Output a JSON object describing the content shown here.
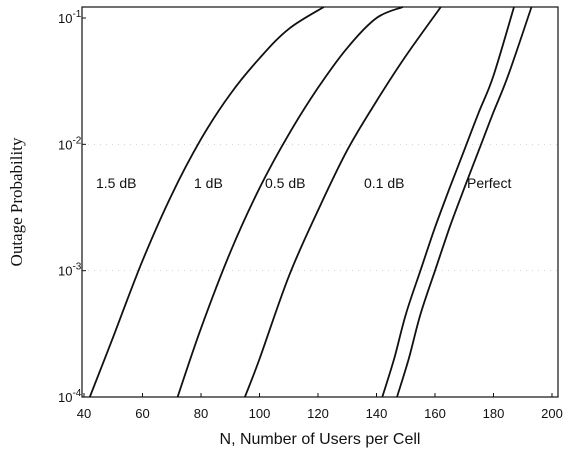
{
  "chart_data": {
    "type": "line",
    "title": "",
    "xlabel": "N, Number of Users per Cell",
    "ylabel": "Outage Probability",
    "xlim": [
      40,
      200
    ],
    "ylim": [
      0.0001,
      0.13
    ],
    "yscale": "log",
    "grid": true,
    "x_ticks": [
      40,
      60,
      80,
      100,
      120,
      140,
      160,
      180,
      200
    ],
    "y_ticks": [
      {
        "value": 0.0001,
        "base": "10",
        "exp": "-4"
      },
      {
        "value": 0.001,
        "base": "10",
        "exp": "-3"
      },
      {
        "value": 0.01,
        "base": "10",
        "exp": "-2"
      },
      {
        "value": 0.1,
        "base": "10",
        "exp": "-1"
      }
    ],
    "series": [
      {
        "name": "1.5 dB",
        "x": [
          42,
          50,
          60,
          70,
          80,
          90,
          100,
          110,
          122
        ],
        "y": [
          0.0001,
          0.0003,
          0.0012,
          0.004,
          0.011,
          0.025,
          0.048,
          0.082,
          0.13
        ]
      },
      {
        "name": "1 dB",
        "x": [
          72,
          80,
          90,
          100,
          110,
          120,
          130,
          140,
          149
        ],
        "y": [
          0.0001,
          0.00035,
          0.0014,
          0.0045,
          0.012,
          0.028,
          0.058,
          0.1,
          0.13
        ]
      },
      {
        "name": "0.5 dB",
        "x": [
          95,
          100,
          110,
          120,
          130,
          140,
          150,
          162
        ],
        "y": [
          0.0001,
          0.0002,
          0.0009,
          0.003,
          0.009,
          0.022,
          0.05,
          0.13
        ]
      },
      {
        "name": "0.1 dB",
        "x": [
          142,
          146,
          150,
          155,
          160,
          165,
          170,
          175,
          180,
          187
        ],
        "y": [
          0.0001,
          0.0002,
          0.00045,
          0.001,
          0.0022,
          0.0045,
          0.009,
          0.018,
          0.035,
          0.13
        ]
      },
      {
        "name": "Perfect",
        "x": [
          147,
          151,
          155,
          160,
          165,
          170,
          175,
          180,
          185,
          193
        ],
        "y": [
          0.0001,
          0.0002,
          0.00045,
          0.001,
          0.0022,
          0.0045,
          0.009,
          0.018,
          0.035,
          0.13
        ]
      }
    ]
  }
}
